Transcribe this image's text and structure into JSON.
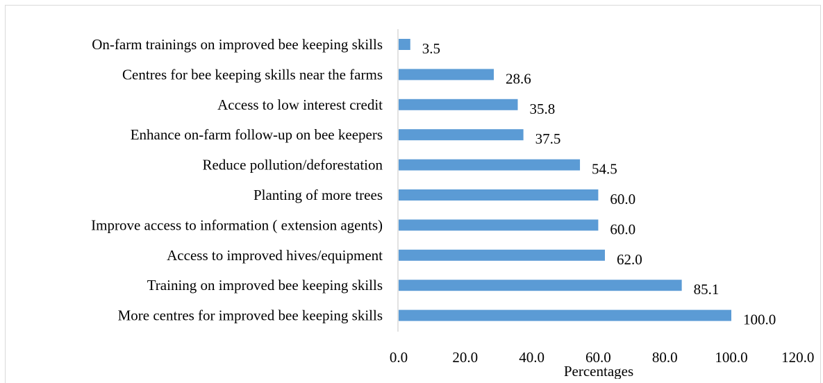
{
  "chart_data": {
    "type": "bar",
    "orientation": "horizontal",
    "title": "",
    "xlabel": "Percentages",
    "ylabel": "",
    "categories": [
      "More centres for improved bee keeping skills",
      "Training on improved bee keeping skills",
      "Access to improved hives/equipment",
      "Improve access to information ( extension agents)",
      "Planting of more trees",
      "Reduce pollution/deforestation",
      "Enhance on-farm follow-up on bee keepers",
      "Access to low interest credit",
      "Centres for bee keeping skills near the farms",
      "On-farm trainings on improved bee keeping skills"
    ],
    "values": [
      100.0,
      85.1,
      62.0,
      60.0,
      60.0,
      54.5,
      37.5,
      35.8,
      28.6,
      3.5
    ],
    "value_labels": [
      "100.0",
      "85.1",
      "62.0",
      "60.0",
      "60.0",
      "54.5",
      "37.5",
      "35.8",
      "28.6",
      "3.5"
    ],
    "xlim": [
      0,
      120
    ],
    "xticks": [
      0,
      20,
      40,
      60,
      80,
      100,
      120
    ],
    "xtick_labels": [
      "0.0",
      "20.0",
      "40.0",
      "60.0",
      "80.0",
      "100.0",
      "120.0"
    ],
    "grid": false,
    "legend": "none",
    "bar_color": "#5b9bd5",
    "axis_color": "#d9d9d9"
  }
}
